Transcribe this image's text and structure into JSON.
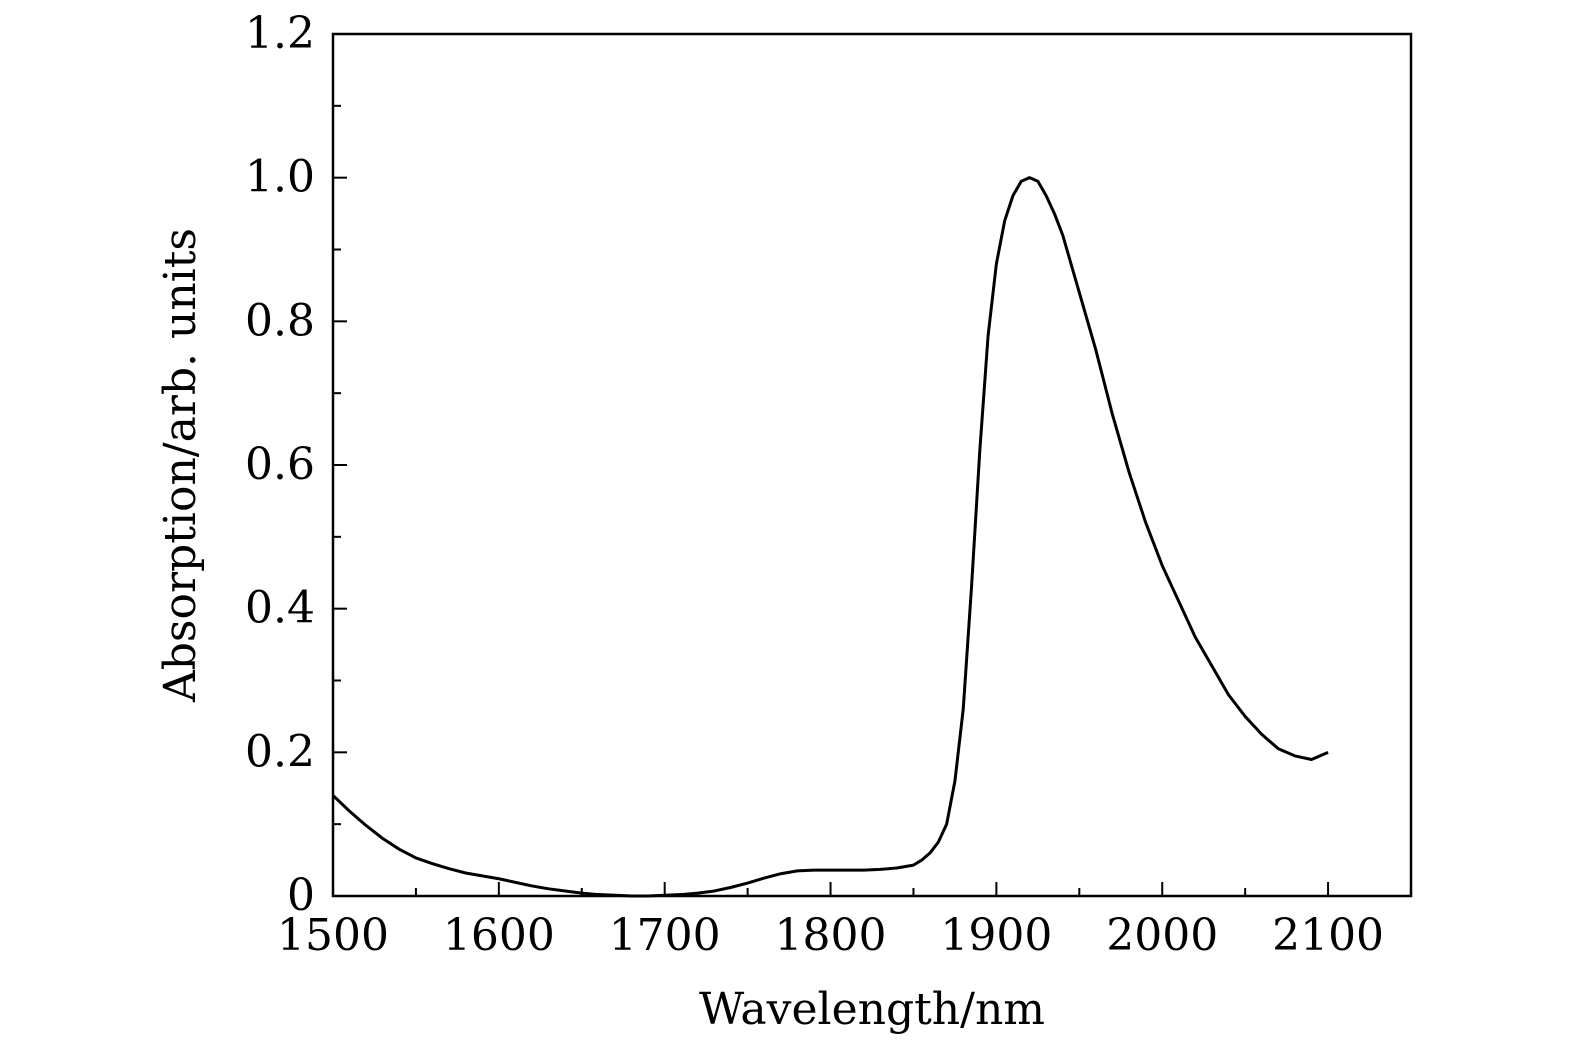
{
  "chart_data": {
    "type": "line",
    "title": "",
    "xlabel": "Wavelength/nm",
    "ylabel": "Absorption/arb. units",
    "xlim": [
      1500,
      2150
    ],
    "ylim": [
      0,
      1.2
    ],
    "xticks": [
      1500,
      1600,
      1700,
      1800,
      1900,
      2000,
      2100
    ],
    "xtick_labels": [
      "1500",
      "1600",
      "1700",
      "1800",
      "1900",
      "2000",
      "2100"
    ],
    "yticks": [
      0,
      0.2,
      0.4,
      0.6,
      0.8,
      1.0,
      1.2
    ],
    "ytick_labels": [
      "0",
      "0.2",
      "0.4",
      "0.6",
      "0.8",
      "1.0",
      "1.2"
    ],
    "grid": false,
    "line_color": "#000000",
    "series": [
      {
        "x": [
          1500,
          1510,
          1520,
          1530,
          1540,
          1550,
          1560,
          1570,
          1580,
          1590,
          1600,
          1610,
          1620,
          1630,
          1640,
          1650,
          1660,
          1670,
          1680,
          1690,
          1700,
          1710,
          1720,
          1730,
          1740,
          1750,
          1760,
          1770,
          1780,
          1790,
          1800,
          1810,
          1820,
          1830,
          1840,
          1850,
          1855,
          1860,
          1865,
          1870,
          1875,
          1880,
          1885,
          1890,
          1895,
          1900,
          1905,
          1910,
          1915,
          1920,
          1925,
          1930,
          1935,
          1940,
          1945,
          1950,
          1960,
          1970,
          1980,
          1990,
          2000,
          2010,
          2020,
          2030,
          2040,
          2050,
          2060,
          2070,
          2080,
          2090,
          2100
        ],
        "values": [
          0.14,
          0.118,
          0.098,
          0.08,
          0.065,
          0.053,
          0.045,
          0.038,
          0.032,
          0.028,
          0.024,
          0.019,
          0.014,
          0.01,
          0.007,
          0.004,
          0.002,
          0.001,
          0.0,
          0.0,
          0.001,
          0.002,
          0.004,
          0.007,
          0.012,
          0.018,
          0.025,
          0.031,
          0.035,
          0.036,
          0.036,
          0.036,
          0.036,
          0.037,
          0.039,
          0.043,
          0.05,
          0.06,
          0.075,
          0.1,
          0.16,
          0.26,
          0.43,
          0.62,
          0.78,
          0.88,
          0.94,
          0.975,
          0.995,
          1.0,
          0.995,
          0.975,
          0.95,
          0.92,
          0.88,
          0.84,
          0.76,
          0.67,
          0.59,
          0.52,
          0.46,
          0.41,
          0.36,
          0.32,
          0.28,
          0.25,
          0.225,
          0.205,
          0.195,
          0.19,
          0.2
        ]
      }
    ]
  }
}
